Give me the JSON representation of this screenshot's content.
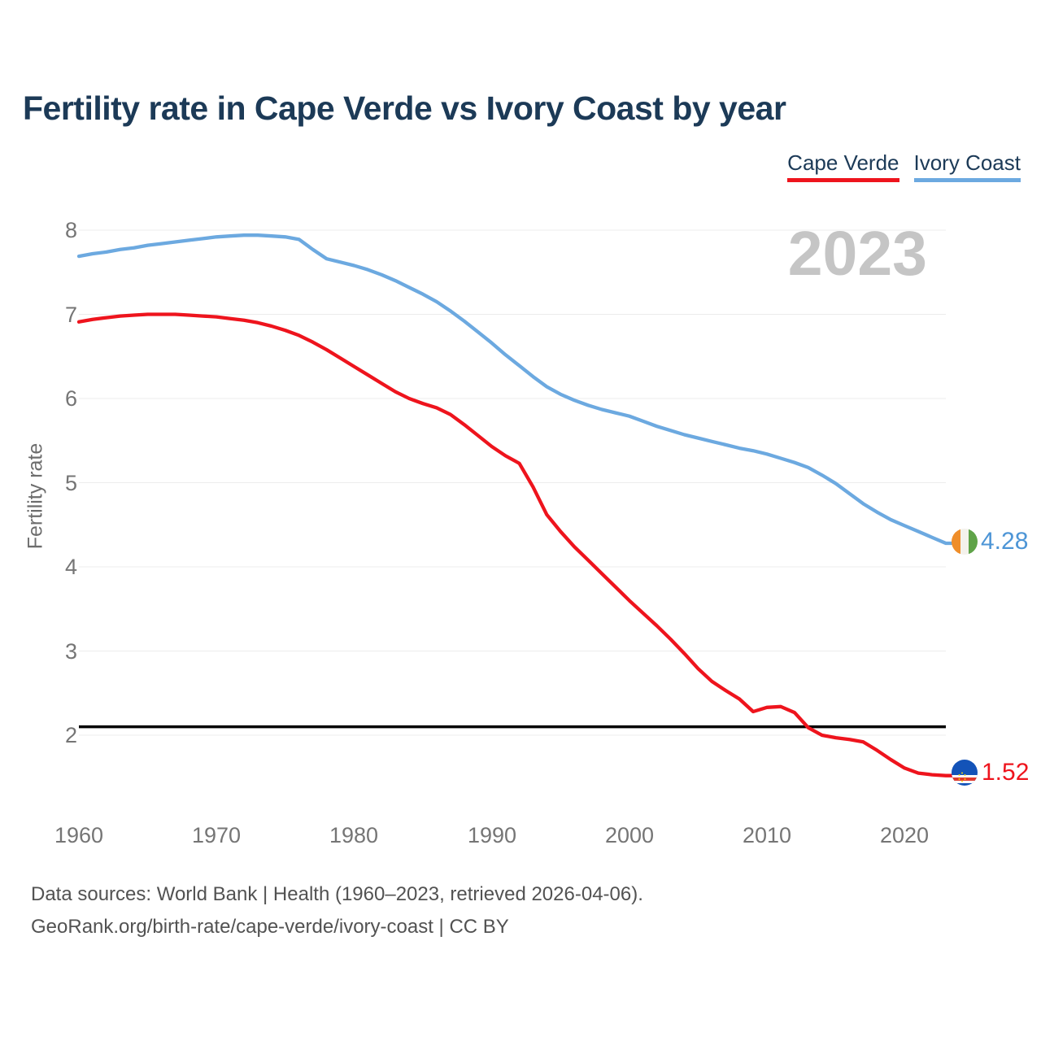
{
  "page": {
    "title": "Fertility rate in Cape Verde vs Ivory Coast by year",
    "watermark_year": "2023"
  },
  "footer": {
    "line1": "Data sources: World Bank | Health (1960–2023, retrieved 2026-04-06).",
    "line2": "GeoRank.org/birth-rate/cape-verde/ivory-coast | CC BY"
  },
  "chart_data": {
    "type": "line",
    "title": "Fertility rate in Cape Verde vs Ivory Coast by year",
    "xlabel": "",
    "ylabel": "Fertility rate",
    "x_range": [
      1960,
      2023
    ],
    "ylim": [
      2,
      8
    ],
    "yticks": [
      2,
      3,
      4,
      5,
      6,
      7,
      8
    ],
    "xticks": [
      1960,
      1970,
      1980,
      1990,
      2000,
      2010,
      2020
    ],
    "grid": "horizontal",
    "grid_color": "#ececec",
    "legend_position": "top-right",
    "tick_color": "#757575",
    "reference_line": {
      "value": 2.1,
      "color": "#000000"
    },
    "x": [
      1960,
      1961,
      1962,
      1963,
      1964,
      1965,
      1966,
      1967,
      1968,
      1969,
      1970,
      1971,
      1972,
      1973,
      1974,
      1975,
      1976,
      1977,
      1978,
      1979,
      1980,
      1981,
      1982,
      1983,
      1984,
      1985,
      1986,
      1987,
      1988,
      1989,
      1990,
      1991,
      1992,
      1993,
      1994,
      1995,
      1996,
      1997,
      1998,
      1999,
      2000,
      2001,
      2002,
      2003,
      2004,
      2005,
      2006,
      2007,
      2008,
      2009,
      2010,
      2011,
      2012,
      2013,
      2014,
      2015,
      2016,
      2017,
      2018,
      2019,
      2020,
      2021,
      2022,
      2023
    ],
    "series": [
      {
        "id": "cape-verde",
        "name": "Cape Verde",
        "color": "#ee141d",
        "label_color": "#ee141d",
        "end_label": "1.52",
        "flag_icon": "cape-verde-flag-icon",
        "values": [
          6.91,
          6.94,
          6.96,
          6.98,
          6.99,
          7.0,
          7.0,
          7.0,
          6.99,
          6.98,
          6.97,
          6.95,
          6.93,
          6.9,
          6.86,
          6.81,
          6.75,
          6.67,
          6.58,
          6.48,
          6.38,
          6.28,
          6.18,
          6.08,
          6.0,
          5.94,
          5.89,
          5.81,
          5.69,
          5.56,
          5.43,
          5.32,
          5.23,
          4.95,
          4.62,
          4.42,
          4.24,
          4.08,
          3.92,
          3.76,
          3.6,
          3.45,
          3.3,
          3.14,
          2.97,
          2.79,
          2.64,
          2.53,
          2.43,
          2.28,
          2.33,
          2.34,
          2.27,
          2.09,
          2.0,
          1.97,
          1.95,
          1.92,
          1.82,
          1.71,
          1.61,
          1.55,
          1.53,
          1.52
        ]
      },
      {
        "id": "ivory-coast",
        "name": "Ivory Coast",
        "color": "#6ca9e0",
        "label_color": "#4d95d6",
        "end_label": "4.28",
        "flag_icon": "ivory-coast-flag-icon",
        "values": [
          7.69,
          7.72,
          7.74,
          7.77,
          7.79,
          7.82,
          7.84,
          7.86,
          7.88,
          7.9,
          7.92,
          7.93,
          7.94,
          7.94,
          7.93,
          7.92,
          7.89,
          7.77,
          7.66,
          7.62,
          7.58,
          7.53,
          7.47,
          7.4,
          7.32,
          7.24,
          7.15,
          7.04,
          6.92,
          6.79,
          6.66,
          6.52,
          6.39,
          6.26,
          6.14,
          6.05,
          5.98,
          5.92,
          5.87,
          5.83,
          5.79,
          5.73,
          5.67,
          5.62,
          5.57,
          5.53,
          5.49,
          5.45,
          5.41,
          5.38,
          5.34,
          5.29,
          5.24,
          5.18,
          5.09,
          4.99,
          4.87,
          4.75,
          4.65,
          4.56,
          4.49,
          4.42,
          4.35,
          4.28
        ]
      }
    ]
  }
}
